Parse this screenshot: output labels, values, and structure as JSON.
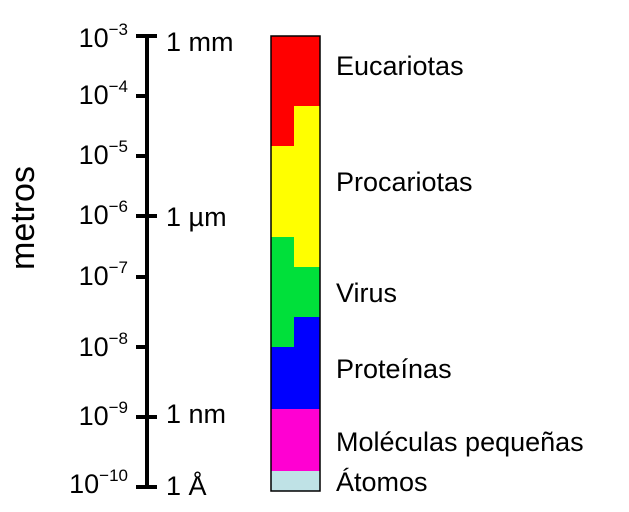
{
  "diagram": {
    "axis_title": "metros",
    "scale": "log10",
    "range_exponents": [
      -3,
      -10
    ],
    "ticks": [
      {
        "base": "10",
        "exponent": "−3",
        "exp_value": -3,
        "unit": "1 mm"
      },
      {
        "base": "10",
        "exponent": "−4",
        "exp_value": -4,
        "unit": ""
      },
      {
        "base": "10",
        "exponent": "−5",
        "exp_value": -5,
        "unit": ""
      },
      {
        "base": "10",
        "exponent": "−6",
        "exp_value": -6,
        "unit": "1 µm"
      },
      {
        "base": "10",
        "exponent": "−7",
        "exp_value": -7,
        "unit": ""
      },
      {
        "base": "10",
        "exponent": "−8",
        "exp_value": -8,
        "unit": ""
      },
      {
        "base": "10",
        "exponent": "−9",
        "exp_value": -9,
        "unit": "1 nm"
      },
      {
        "base": "10",
        "exponent": "−10",
        "exp_value": -10,
        "unit": "1 Å"
      }
    ],
    "bands": [
      {
        "name": "Eucariotas",
        "color": "#ff0000"
      },
      {
        "name": "Procariotas",
        "color": "#ffff00"
      },
      {
        "name": "Virus",
        "color": "#00e03a"
      },
      {
        "name": "Proteínas",
        "color": "#0000ff"
      },
      {
        "name": "Moléculas pequeñas",
        "color": "#ff00d2"
      },
      {
        "name": "Átomos",
        "color": "#bfe2e6"
      }
    ],
    "colors": {
      "axis": "#000000",
      "outline": "#000000"
    }
  }
}
